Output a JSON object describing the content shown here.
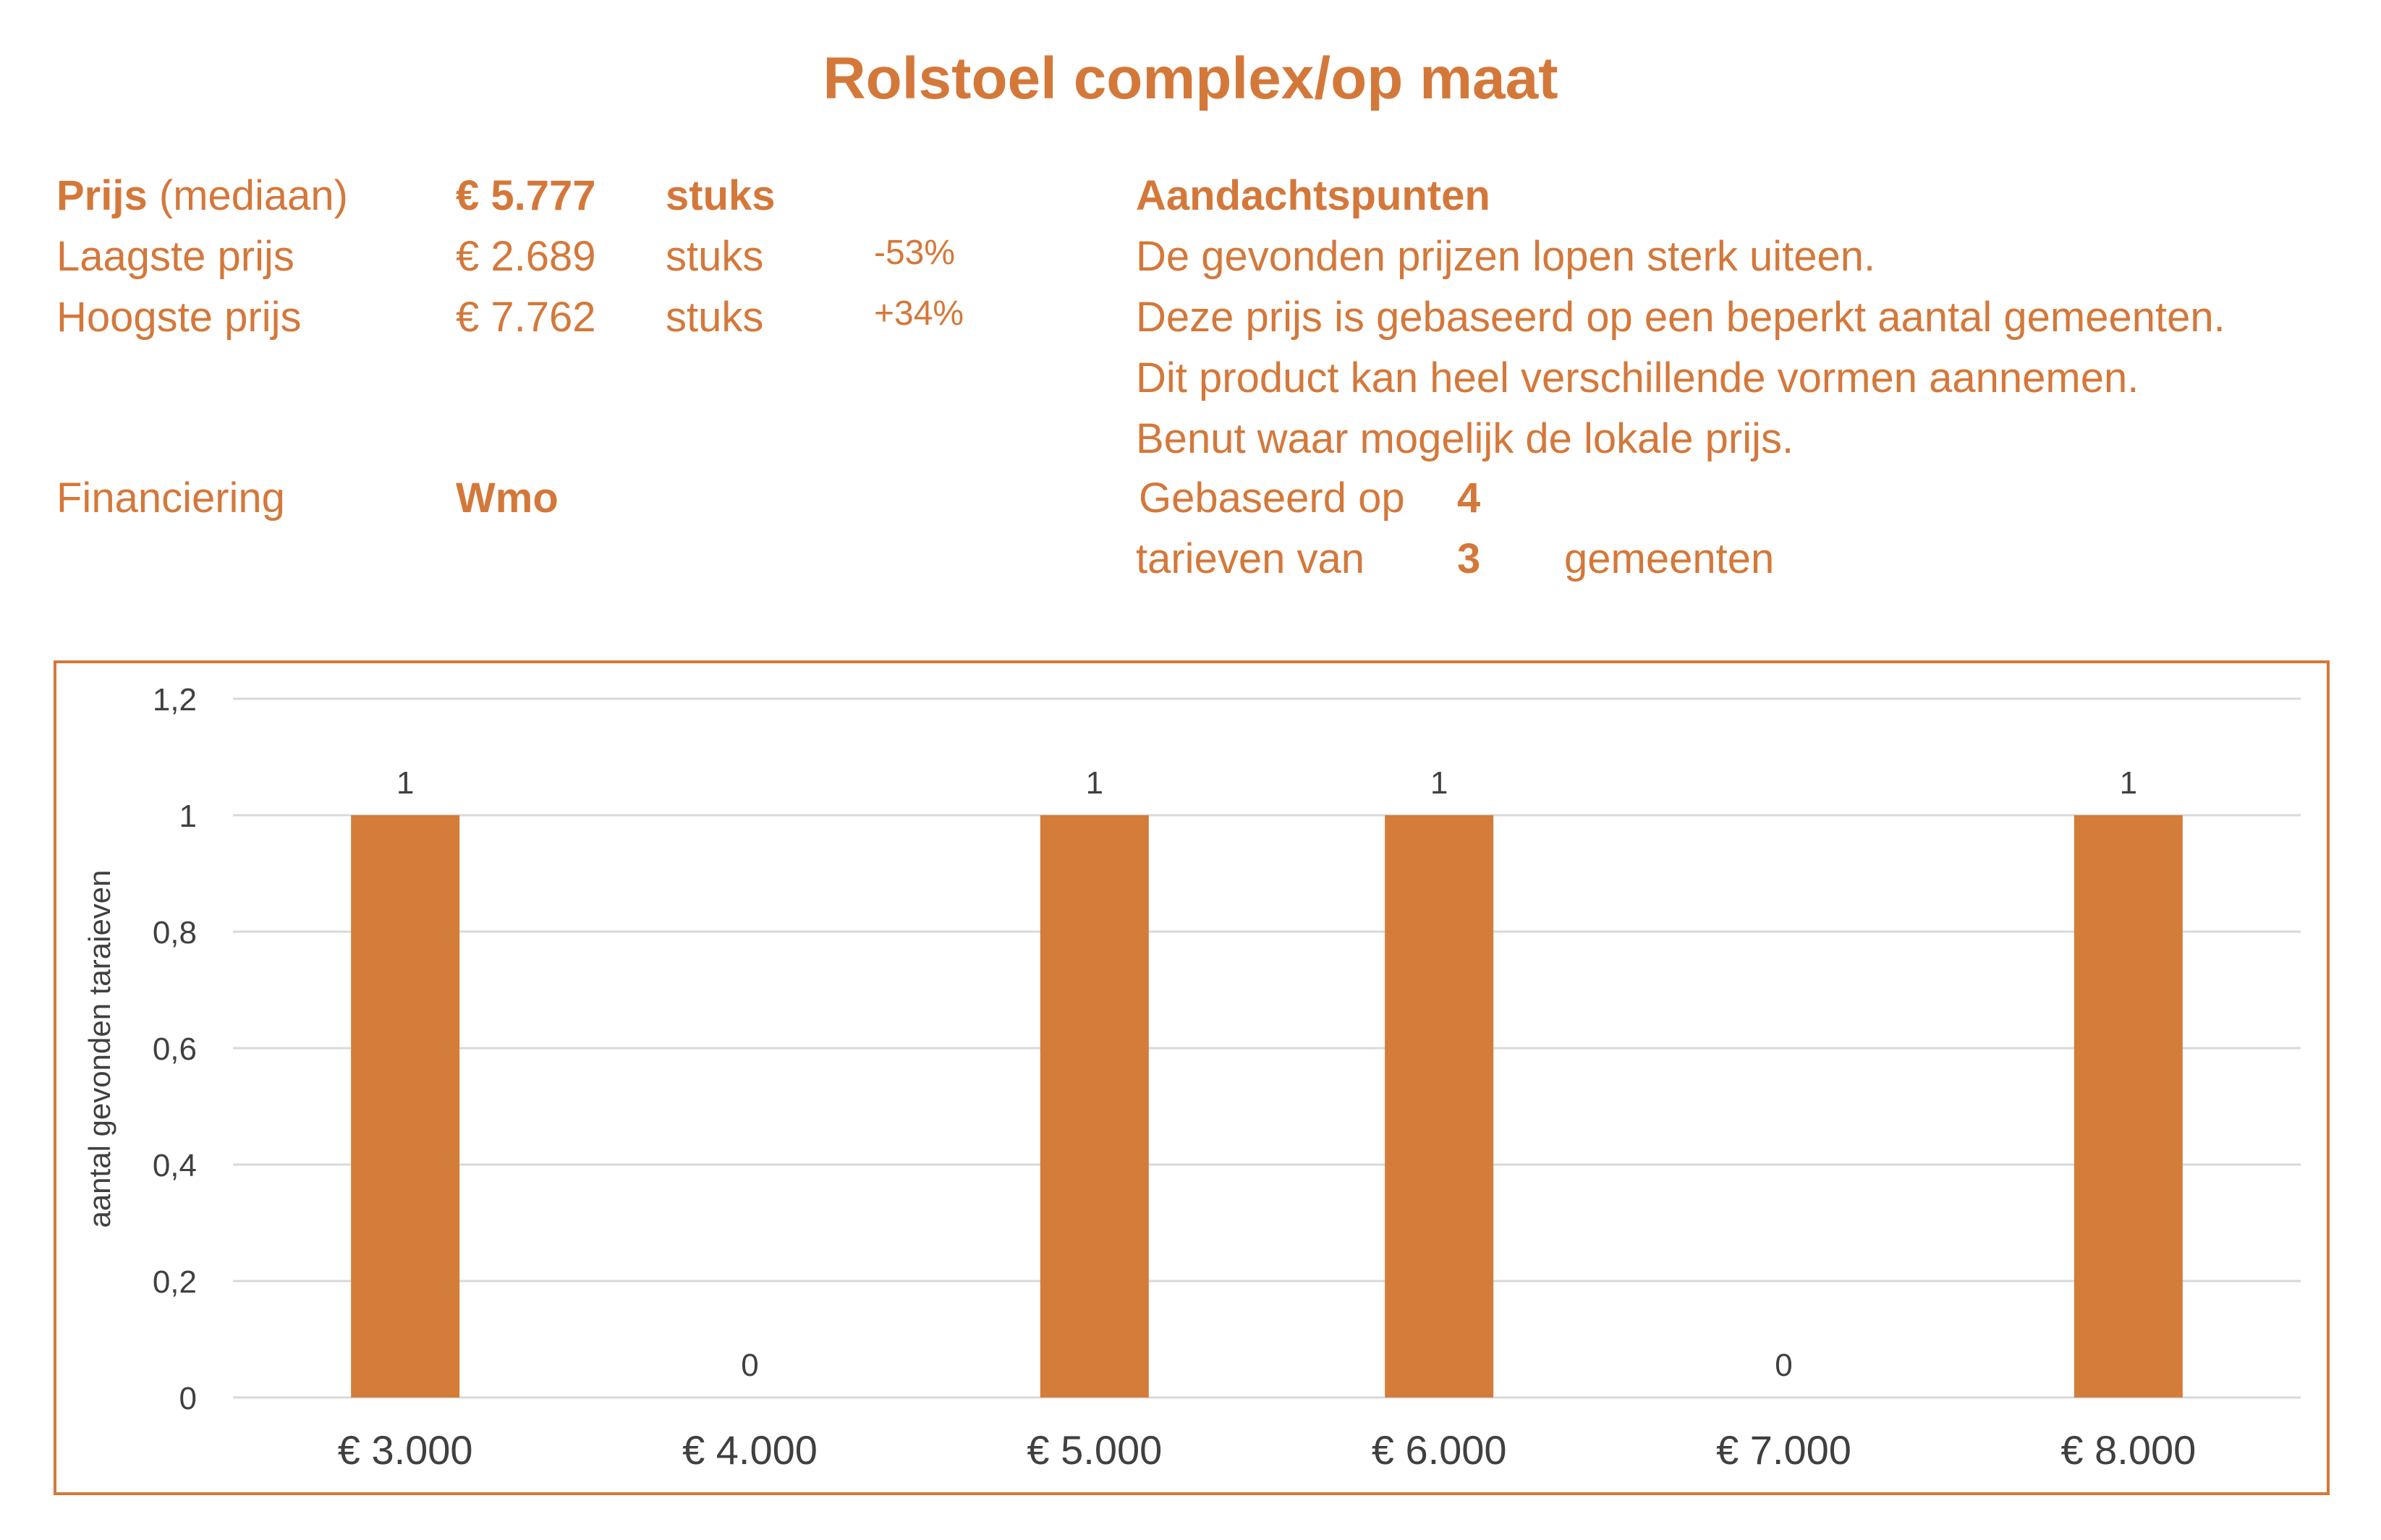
{
  "title": "Rolstoel complex/op maat",
  "info": {
    "prijs_label": "Prijs",
    "prijs_suffix": "(mediaan)",
    "prijs_value": "€ 5.777",
    "prijs_unit": "stuks",
    "laagste_label": "Laagste prijs",
    "laagste_value": "€ 2.689",
    "laagste_unit": "stuks",
    "laagste_pct": "-53%",
    "hoogste_label": "Hoogste prijs",
    "hoogste_value": "€ 7.762",
    "hoogste_unit": "stuks",
    "hoogste_pct": "+34%",
    "financiering_label": "Financiering",
    "financiering_value": "Wmo"
  },
  "aandachtspunten": {
    "heading": "Aandachtspunten",
    "lines": [
      "De gevonden prijzen lopen sterk uiteen.",
      "Deze prijs is gebaseerd op een beperkt aantal gemeenten.",
      "Dit product kan heel verschillende vormen aannemen.",
      "Benut waar mogelijk de lokale prijs."
    ],
    "gebaseerd_label": "Gebaseerd op",
    "gebaseerd_value": "4",
    "tarieven_label": "tarieven van",
    "tarieven_value": "3",
    "gemeenten_label": "gemeenten"
  },
  "colors": {
    "accent": "#D4783A",
    "bar": "#D47C3A",
    "grid": "#D9D9D9",
    "axis_text": "#404040"
  },
  "chart_data": {
    "type": "bar",
    "categories": [
      "€ 3.000",
      "€ 4.000",
      "€ 5.000",
      "€ 6.000",
      "€ 7.000",
      "€ 8.000"
    ],
    "values": [
      1,
      0,
      1,
      1,
      0,
      1
    ],
    "data_labels": [
      "1",
      "0",
      "1",
      "1",
      "0",
      "1"
    ],
    "xlabel": "",
    "ylabel": "aantal gevonden taraieven",
    "ylim": [
      0,
      1.2
    ],
    "yticks": [
      "0",
      "0,2",
      "0,4",
      "0,6",
      "0,8",
      "1",
      "1,2"
    ],
    "grid": true,
    "legend": "none"
  }
}
